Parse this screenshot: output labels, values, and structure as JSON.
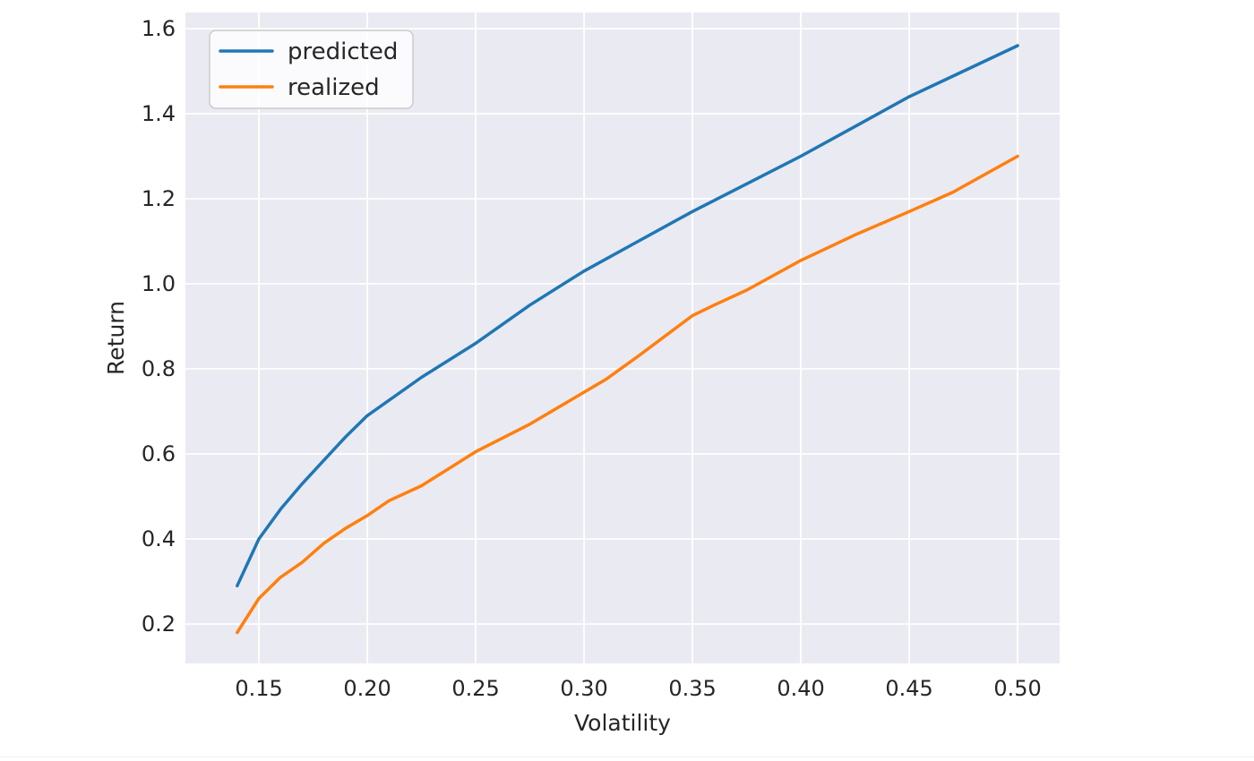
{
  "chart_data": {
    "type": "line",
    "title": "",
    "xlabel": "Volatility",
    "ylabel": "Return",
    "xlim": [
      0.1161,
      0.5194
    ],
    "ylim": [
      0.1074,
      1.6379
    ],
    "x_ticks": [
      0.15,
      0.2,
      0.25,
      0.3,
      0.35,
      0.4,
      0.45,
      0.5
    ],
    "x_tick_labels": [
      "0.15",
      "0.20",
      "0.25",
      "0.30",
      "0.35",
      "0.40",
      "0.45",
      "0.50"
    ],
    "y_ticks": [
      0.2,
      0.4,
      0.6,
      0.8,
      1.0,
      1.2,
      1.4,
      1.6
    ],
    "y_tick_labels": [
      "0.2",
      "0.4",
      "0.6",
      "0.8",
      "1.0",
      "1.2",
      "1.4",
      "1.6"
    ],
    "grid": true,
    "legend_position": "upper left",
    "legend_entries": [
      "predicted",
      "realized"
    ],
    "colors": {
      "plot_background": "#eaeaf2",
      "grid_color": "#ffffff",
      "text_color": "#262626",
      "legend_face": "rgba(255,255,255,0.8)",
      "legend_edge": "#cccccc",
      "predicted": "#1f77b4",
      "realized": "#ff7f0e"
    },
    "series": [
      {
        "name": "predicted",
        "color": "#1f77b4",
        "x": [
          0.14,
          0.15,
          0.16,
          0.17,
          0.18,
          0.19,
          0.2,
          0.225,
          0.25,
          0.275,
          0.3,
          0.325,
          0.35,
          0.375,
          0.4,
          0.425,
          0.45,
          0.475,
          0.5
        ],
        "y": [
          0.29,
          0.4,
          0.47,
          0.53,
          0.585,
          0.64,
          0.69,
          0.78,
          0.86,
          0.95,
          1.03,
          1.1,
          1.17,
          1.235,
          1.3,
          1.37,
          1.44,
          1.5,
          1.56
        ]
      },
      {
        "name": "realized",
        "color": "#ff7f0e",
        "x": [
          0.14,
          0.15,
          0.155,
          0.16,
          0.17,
          0.18,
          0.19,
          0.2,
          0.21,
          0.225,
          0.25,
          0.275,
          0.3,
          0.31,
          0.325,
          0.35,
          0.36,
          0.375,
          0.4,
          0.425,
          0.45,
          0.47,
          0.5
        ],
        "y": [
          0.18,
          0.26,
          0.285,
          0.31,
          0.345,
          0.39,
          0.425,
          0.455,
          0.49,
          0.525,
          0.605,
          0.67,
          0.745,
          0.775,
          0.83,
          0.925,
          0.95,
          0.985,
          1.055,
          1.115,
          1.17,
          1.215,
          1.3
        ]
      }
    ]
  }
}
